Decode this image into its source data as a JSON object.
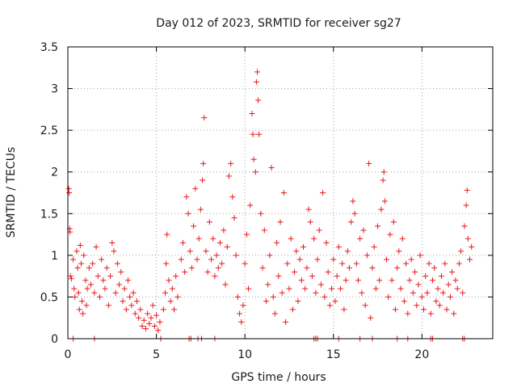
{
  "chart_data": {
    "type": "scatter",
    "title": "Day 012 of 2023, SRMTID for receiver sg27",
    "xlabel": "GPS time / hours",
    "ylabel": "SRMTID / TECUs",
    "xlim": [
      0,
      24
    ],
    "ylim": [
      0,
      3.5
    ],
    "xticks": [
      0,
      5,
      10,
      15,
      20
    ],
    "xtick_labels": [
      "0",
      "5",
      "10",
      "15",
      "20"
    ],
    "yticks": [
      0,
      0.5,
      1,
      1.5,
      2,
      2.5,
      3,
      3.5
    ],
    "ytick_labels": [
      "0",
      "0.5",
      "1",
      "1.5",
      "2",
      "2.5",
      "3",
      "3.5"
    ],
    "grid": true,
    "series": [
      {
        "name": "SRMTID",
        "color": "#e8191d",
        "marker": "plus",
        "points": [
          [
            0.05,
            1.8
          ],
          [
            0.07,
            1.75
          ],
          [
            0.1,
            1.32
          ],
          [
            0.12,
            1.28
          ],
          [
            0.15,
            0.75
          ],
          [
            0.2,
            0.72
          ],
          [
            0.3,
            0.95
          ],
          [
            0.35,
            0.6
          ],
          [
            0.4,
            0.5
          ],
          [
            0.5,
            1.05
          ],
          [
            0.55,
            0.85
          ],
          [
            0.6,
            0.55
          ],
          [
            0.65,
            0.35
          ],
          [
            0.7,
            1.12
          ],
          [
            0.75,
            0.9
          ],
          [
            0.8,
            0.45
          ],
          [
            0.85,
            0.3
          ],
          [
            0.9,
            1.0
          ],
          [
            1.0,
            0.7
          ],
          [
            1.05,
            0.4
          ],
          [
            1.1,
            0.6
          ],
          [
            1.2,
            0.85
          ],
          [
            1.3,
            0.65
          ],
          [
            1.4,
            0.9
          ],
          [
            1.5,
            0.55
          ],
          [
            1.6,
            1.1
          ],
          [
            1.7,
            0.75
          ],
          [
            1.8,
            0.5
          ],
          [
            1.9,
            0.95
          ],
          [
            2.0,
            0.7
          ],
          [
            2.1,
            0.6
          ],
          [
            2.2,
            0.85
          ],
          [
            2.3,
            0.4
          ],
          [
            2.4,
            0.75
          ],
          [
            2.5,
            1.15
          ],
          [
            2.6,
            1.05
          ],
          [
            2.7,
            0.55
          ],
          [
            2.8,
            0.9
          ],
          [
            2.9,
            0.65
          ],
          [
            3.0,
            0.8
          ],
          [
            3.1,
            0.45
          ],
          [
            3.2,
            0.6
          ],
          [
            3.3,
            0.35
          ],
          [
            3.4,
            0.7
          ],
          [
            3.5,
            0.5
          ],
          [
            3.6,
            0.4
          ],
          [
            3.7,
            0.55
          ],
          [
            3.8,
            0.3
          ],
          [
            3.9,
            0.45
          ],
          [
            4.0,
            0.25
          ],
          [
            4.1,
            0.35
          ],
          [
            4.2,
            0.15
          ],
          [
            4.3,
            0.22
          ],
          [
            4.4,
            0.12
          ],
          [
            4.5,
            0.3
          ],
          [
            4.6,
            0.18
          ],
          [
            4.7,
            0.25
          ],
          [
            4.8,
            0.4
          ],
          [
            4.9,
            0.15
          ],
          [
            5.0,
            0.28
          ],
          [
            5.1,
            0.1
          ],
          [
            5.2,
            0.2
          ],
          [
            5.4,
            0.35
          ],
          [
            5.5,
            0.55
          ],
          [
            5.55,
            0.9
          ],
          [
            5.6,
            1.25
          ],
          [
            5.7,
            0.7
          ],
          [
            5.8,
            0.45
          ],
          [
            5.9,
            0.6
          ],
          [
            6.0,
            0.35
          ],
          [
            6.1,
            0.75
          ],
          [
            6.2,
            0.5
          ],
          [
            6.4,
            0.95
          ],
          [
            6.5,
            1.15
          ],
          [
            6.6,
            0.8
          ],
          [
            6.7,
            1.7
          ],
          [
            6.8,
            1.5
          ],
          [
            6.9,
            1.05
          ],
          [
            7.0,
            0.85
          ],
          [
            7.1,
            1.35
          ],
          [
            7.2,
            1.8
          ],
          [
            7.3,
            0.95
          ],
          [
            7.4,
            1.2
          ],
          [
            7.5,
            1.55
          ],
          [
            7.6,
            1.9
          ],
          [
            7.65,
            2.1
          ],
          [
            7.7,
            2.65
          ],
          [
            7.8,
            1.05
          ],
          [
            7.9,
            0.8
          ],
          [
            8.0,
            1.4
          ],
          [
            8.1,
            0.95
          ],
          [
            8.2,
            1.2
          ],
          [
            8.3,
            0.75
          ],
          [
            8.4,
            1.0
          ],
          [
            8.5,
            0.85
          ],
          [
            8.6,
            1.15
          ],
          [
            8.7,
            0.9
          ],
          [
            8.8,
            1.3
          ],
          [
            8.9,
            0.65
          ],
          [
            9.0,
            1.1
          ],
          [
            9.1,
            1.95
          ],
          [
            9.2,
            2.1
          ],
          [
            9.3,
            1.7
          ],
          [
            9.4,
            1.45
          ],
          [
            9.5,
            1.0
          ],
          [
            9.6,
            0.5
          ],
          [
            9.7,
            0.3
          ],
          [
            9.8,
            0.2
          ],
          [
            9.9,
            0.4
          ],
          [
            10.0,
            0.9
          ],
          [
            10.1,
            1.25
          ],
          [
            10.2,
            0.6
          ],
          [
            10.3,
            1.6
          ],
          [
            10.4,
            2.7
          ],
          [
            10.45,
            2.45
          ],
          [
            10.5,
            2.15
          ],
          [
            10.6,
            2.0
          ],
          [
            10.65,
            3.08
          ],
          [
            10.7,
            3.2
          ],
          [
            10.75,
            2.86
          ],
          [
            10.8,
            2.45
          ],
          [
            10.9,
            1.5
          ],
          [
            11.0,
            0.85
          ],
          [
            11.1,
            1.3
          ],
          [
            11.2,
            0.45
          ],
          [
            11.3,
            0.65
          ],
          [
            11.4,
            1.0
          ],
          [
            11.5,
            2.05
          ],
          [
            11.6,
            0.5
          ],
          [
            11.7,
            0.3
          ],
          [
            11.8,
            1.15
          ],
          [
            11.9,
            0.75
          ],
          [
            12.0,
            1.4
          ],
          [
            12.1,
            0.55
          ],
          [
            12.2,
            1.75
          ],
          [
            12.3,
            0.2
          ],
          [
            12.4,
            0.9
          ],
          [
            12.5,
            0.6
          ],
          [
            12.6,
            1.2
          ],
          [
            12.7,
            0.35
          ],
          [
            12.8,
            0.8
          ],
          [
            12.9,
            1.05
          ],
          [
            13.0,
            0.45
          ],
          [
            13.1,
            0.95
          ],
          [
            13.2,
            0.7
          ],
          [
            13.3,
            1.1
          ],
          [
            13.4,
            0.6
          ],
          [
            13.5,
            0.85
          ],
          [
            13.6,
            1.55
          ],
          [
            13.7,
            1.4
          ],
          [
            13.8,
            0.75
          ],
          [
            13.9,
            1.2
          ],
          [
            14.0,
            0.55
          ],
          [
            14.1,
            0.95
          ],
          [
            14.2,
            1.3
          ],
          [
            14.3,
            0.65
          ],
          [
            14.4,
            1.75
          ],
          [
            14.5,
            0.5
          ],
          [
            14.6,
            1.15
          ],
          [
            14.7,
            0.8
          ],
          [
            14.8,
            0.4
          ],
          [
            14.9,
            0.6
          ],
          [
            15.0,
            0.95
          ],
          [
            15.1,
            0.45
          ],
          [
            15.2,
            0.75
          ],
          [
            15.3,
            1.1
          ],
          [
            15.4,
            0.6
          ],
          [
            15.5,
            0.9
          ],
          [
            15.6,
            0.35
          ],
          [
            15.7,
            0.7
          ],
          [
            15.8,
            1.05
          ],
          [
            15.9,
            0.85
          ],
          [
            16.0,
            1.4
          ],
          [
            16.1,
            1.65
          ],
          [
            16.2,
            1.5
          ],
          [
            16.3,
            0.9
          ],
          [
            16.4,
            0.7
          ],
          [
            16.5,
            1.2
          ],
          [
            16.6,
            0.55
          ],
          [
            16.7,
            1.3
          ],
          [
            16.8,
            0.4
          ],
          [
            16.9,
            1.0
          ],
          [
            17.0,
            2.1
          ],
          [
            17.1,
            0.25
          ],
          [
            17.2,
            0.85
          ],
          [
            17.3,
            1.1
          ],
          [
            17.4,
            0.6
          ],
          [
            17.5,
            1.35
          ],
          [
            17.6,
            0.7
          ],
          [
            17.7,
            1.55
          ],
          [
            17.8,
            1.9
          ],
          [
            17.85,
            2.0
          ],
          [
            17.9,
            1.65
          ],
          [
            18.0,
            0.95
          ],
          [
            18.1,
            0.5
          ],
          [
            18.2,
            1.25
          ],
          [
            18.3,
            0.7
          ],
          [
            18.4,
            1.4
          ],
          [
            18.5,
            0.35
          ],
          [
            18.6,
            0.85
          ],
          [
            18.7,
            1.05
          ],
          [
            18.8,
            0.6
          ],
          [
            18.9,
            1.2
          ],
          [
            19.0,
            0.45
          ],
          [
            19.1,
            0.9
          ],
          [
            19.2,
            0.3
          ],
          [
            19.3,
            0.7
          ],
          [
            19.4,
            0.95
          ],
          [
            19.5,
            0.55
          ],
          [
            19.6,
            0.8
          ],
          [
            19.7,
            0.4
          ],
          [
            19.8,
            0.65
          ],
          [
            19.9,
            1.0
          ],
          [
            20.0,
            0.5
          ],
          [
            20.1,
            0.35
          ],
          [
            20.2,
            0.75
          ],
          [
            20.3,
            0.55
          ],
          [
            20.4,
            0.9
          ],
          [
            20.5,
            0.3
          ],
          [
            20.6,
            0.7
          ],
          [
            20.7,
            0.85
          ],
          [
            20.8,
            0.45
          ],
          [
            20.9,
            0.6
          ],
          [
            21.0,
            0.4
          ],
          [
            21.1,
            0.75
          ],
          [
            21.2,
            0.55
          ],
          [
            21.3,
            0.9
          ],
          [
            21.4,
            0.35
          ],
          [
            21.5,
            0.65
          ],
          [
            21.6,
            0.5
          ],
          [
            21.7,
            0.8
          ],
          [
            21.8,
            0.3
          ],
          [
            21.9,
            0.7
          ],
          [
            22.0,
            0.6
          ],
          [
            22.1,
            0.9
          ],
          [
            22.2,
            1.05
          ],
          [
            22.3,
            0.55
          ],
          [
            22.4,
            1.35
          ],
          [
            22.5,
            1.6
          ],
          [
            22.55,
            1.78
          ],
          [
            22.6,
            1.2
          ],
          [
            22.7,
            0.95
          ],
          [
            22.8,
            1.1
          ],
          [
            0.3,
            0.0
          ],
          [
            1.5,
            0.0
          ],
          [
            5.25,
            0.0
          ],
          [
            6.85,
            0.0
          ],
          [
            6.95,
            0.0
          ],
          [
            7.35,
            0.0
          ],
          [
            7.55,
            0.0
          ],
          [
            8.3,
            0.0
          ],
          [
            13.9,
            0.0
          ],
          [
            14.0,
            0.0
          ],
          [
            14.1,
            0.0
          ],
          [
            15.3,
            0.0
          ],
          [
            16.5,
            0.0
          ],
          [
            17.2,
            0.0
          ],
          [
            18.6,
            0.0
          ],
          [
            19.2,
            0.0
          ],
          [
            20.5,
            0.0
          ],
          [
            20.6,
            0.0
          ],
          [
            22.3,
            0.0
          ],
          [
            22.4,
            0.0
          ]
        ]
      }
    ]
  }
}
